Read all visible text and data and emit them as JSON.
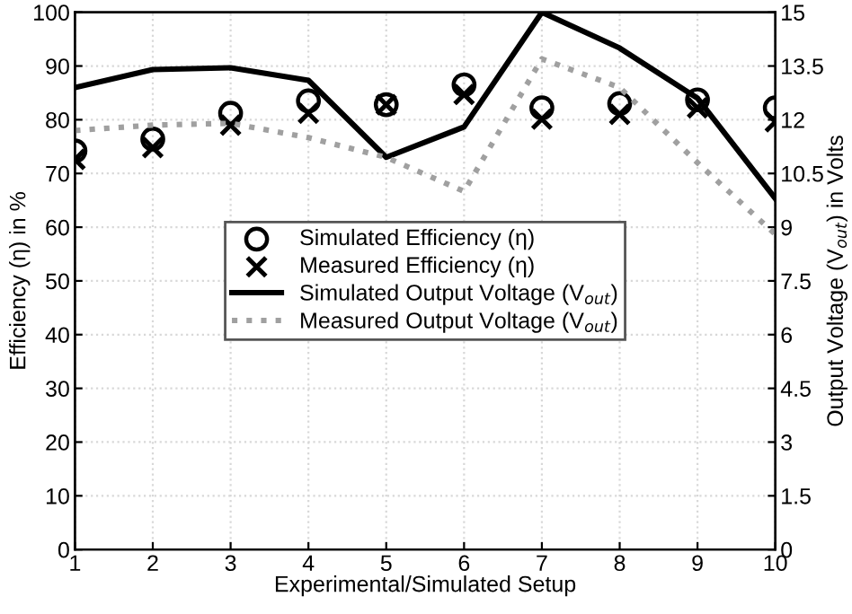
{
  "chart_data": {
    "type": "scatter",
    "xlabel": "Experimental/Simulated Setup",
    "ylabel": "Efficiency (η) in %",
    "y2label": "Output Voltage (V$_{out}$) in Volts",
    "x": [
      1,
      2,
      3,
      4,
      5,
      6,
      7,
      8,
      9,
      10
    ],
    "xlim": [
      1,
      10
    ],
    "xticks": [
      1,
      2,
      3,
      4,
      5,
      6,
      7,
      8,
      9,
      10
    ],
    "ylim": [
      0,
      100
    ],
    "yticks": [
      0,
      10,
      20,
      30,
      40,
      50,
      60,
      70,
      80,
      90,
      100
    ],
    "y2lim": [
      0,
      15
    ],
    "y2ticks": [
      0,
      1.5,
      3,
      4.5,
      6,
      7.5,
      9,
      10.5,
      12,
      13.5,
      15
    ],
    "grid": true,
    "legend": "center",
    "series": [
      {
        "name": "Simulated Efficiency (η)",
        "marker": "circle",
        "color": "#000000",
        "values": [
          74.2,
          76.4,
          81.2,
          83.5,
          82.8,
          86.5,
          82.2,
          83,
          83.7,
          82.2
        ]
      },
      {
        "name": "Measured Efficiency (η)",
        "marker": "cross",
        "color": "#000000",
        "values": [
          72.6,
          74.8,
          79,
          81.2,
          82.8,
          84.7,
          80.1,
          81,
          82.2,
          79.6
        ]
      },
      {
        "name": "Simulated Output Voltage (V$_{out}$)",
        "type": "line",
        "axis": "y2",
        "line_style": "solid",
        "color": "#000000",
        "values": [
          12.9,
          13.4,
          13.45,
          13.1,
          10.95,
          11.8,
          15.0,
          14.0,
          12.6,
          9.8
        ]
      },
      {
        "name": "Measured Output Voltage (V$_{out}$)",
        "type": "line",
        "axis": "y2",
        "line_style": "dotted",
        "color": "#a0a0a0",
        "values": [
          11.7,
          11.85,
          11.9,
          11.5,
          10.95,
          10.0,
          13.7,
          12.9,
          10.8,
          8.8
        ]
      }
    ]
  }
}
